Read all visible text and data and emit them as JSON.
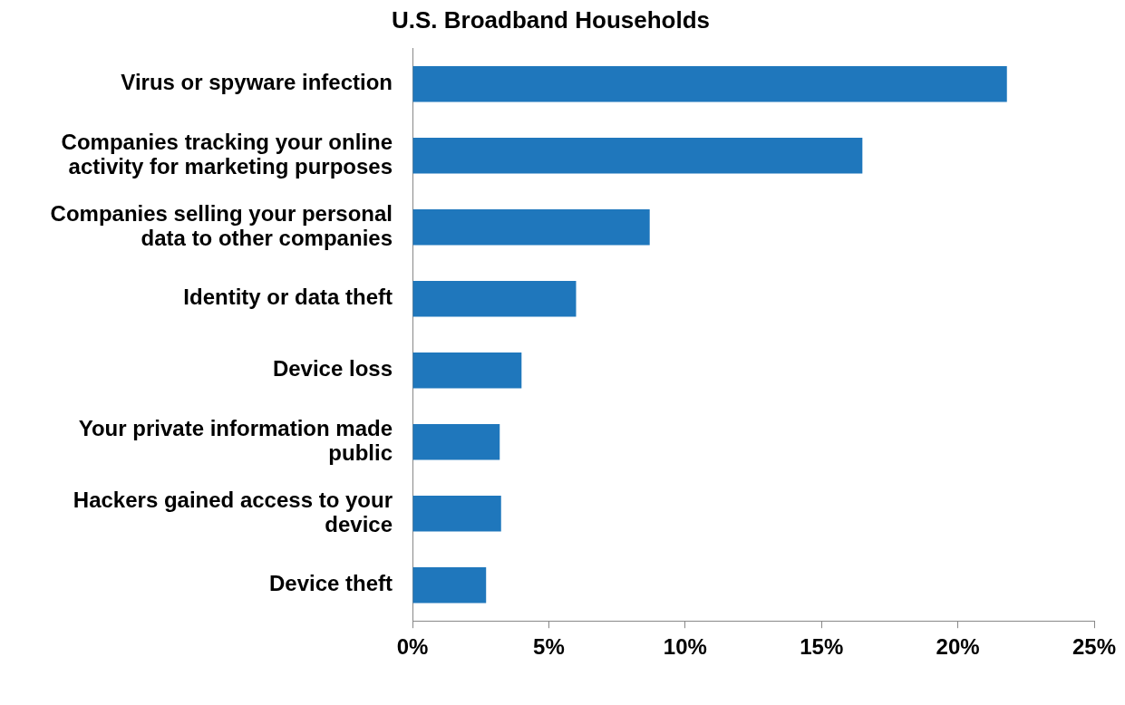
{
  "chart_data": {
    "type": "bar",
    "orientation": "horizontal",
    "title": "U.S. Broadband Households",
    "categories": [
      "Virus or spyware infection",
      "Companies tracking your online activity for marketing purposes",
      "Companies selling your personal data to other companies",
      "Identity or data theft",
      "Device loss",
      "Your private information made public",
      "Hackers gained access to your device",
      "Device theft"
    ],
    "values": [
      21.8,
      16.5,
      8.7,
      6.0,
      4.0,
      3.2,
      3.25,
      2.7
    ],
    "color": "#1f77bc",
    "xlim": [
      0,
      25
    ],
    "xticks": [
      {
        "value": 0,
        "label": "0%"
      },
      {
        "value": 5,
        "label": "5%"
      },
      {
        "value": 10,
        "label": "10%"
      },
      {
        "value": 15,
        "label": "15%"
      },
      {
        "value": 20,
        "label": "20%"
      },
      {
        "value": 25,
        "label": "25%"
      }
    ],
    "grid": false,
    "legend": false
  }
}
